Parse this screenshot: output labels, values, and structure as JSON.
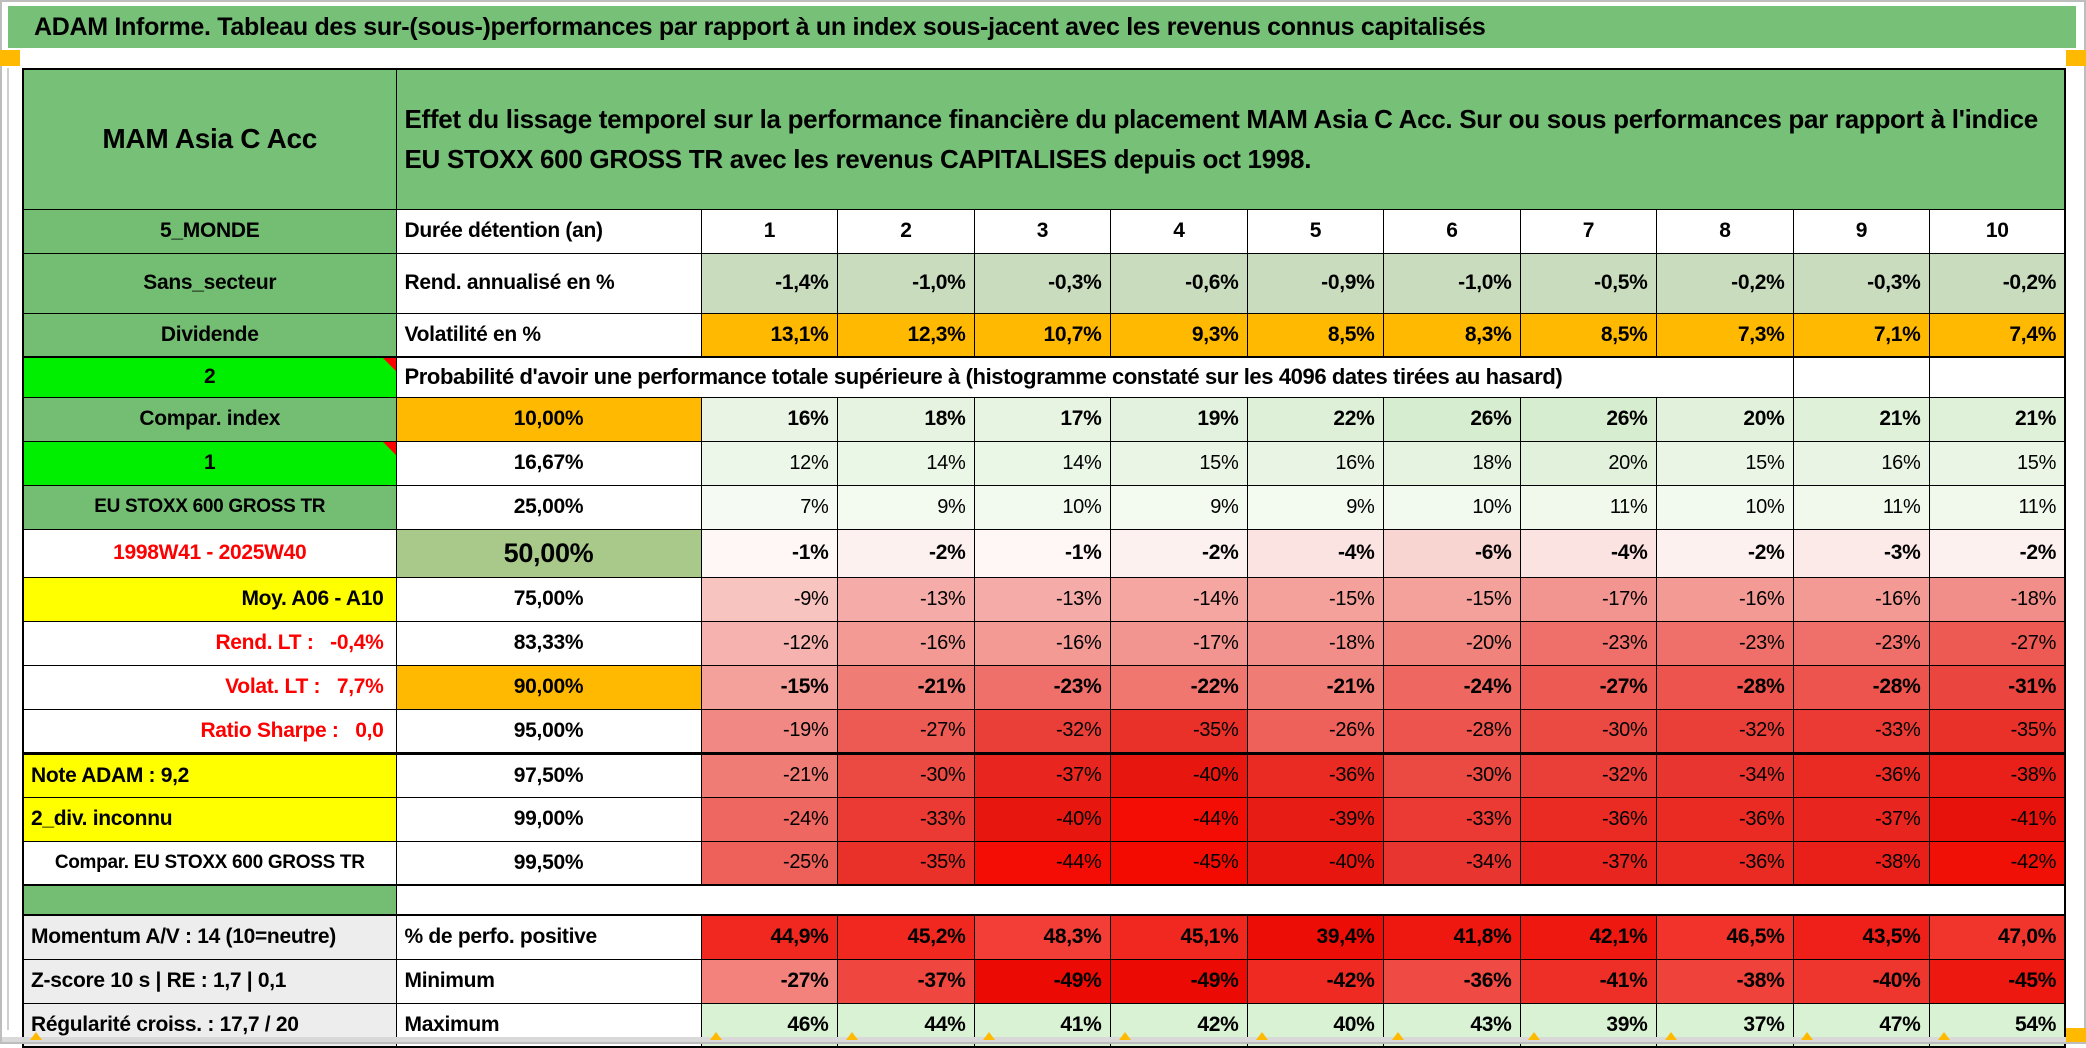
{
  "title": "ADAM Informe. Tableau des sur-(sous-)performances par rapport à un index sous-jacent avec les revenus connus capitalisés",
  "colors": {
    "header_green": "#76C077",
    "label_green": "#74BE73",
    "bright_green": "#00EE00",
    "orange": "#FFB900",
    "yellow": "#FFFF00",
    "sage_green": "#A9C98B",
    "light_green": "#C9DDBE",
    "pale_green_max": "#D8F2D3",
    "gray_label": "#EDEDED",
    "red_text": "#FF0000",
    "strong_red": "#F02820"
  },
  "table": {
    "header": {
      "fund": "MAM Asia C Acc",
      "description": "Effet du lissage temporel sur la performance financière du placement MAM Asia C Acc. Sur ou sous performances par rapport à l'indice EU STOXX 600 GROSS TR avec les revenus CAPITALISES depuis oct 1998."
    },
    "rows": [
      {
        "name": "row-duree",
        "kind": "head",
        "label": "5_MONDE",
        "label_bg": "#74BE73",
        "col2": {
          "text": "Durée détention (an)",
          "align": "left"
        },
        "values": [
          "1",
          "2",
          "3",
          "4",
          "5",
          "6",
          "7",
          "8",
          "9",
          "10"
        ],
        "bg": [
          "#FFFFFF",
          "#FFFFFF",
          "#FFFFFF",
          "#FFFFFF",
          "#FFFFFF",
          "#FFFFFF",
          "#FFFFFF",
          "#FFFFFF",
          "#FFFFFF",
          "#FFFFFF"
        ],
        "bold": true
      },
      {
        "name": "row-rendement",
        "kind": "rend",
        "label": "Sans_secteur",
        "label_bg": "#74BE73",
        "col2": {
          "text": "Rend. annualisé en %",
          "align": "left"
        },
        "values": [
          "-1,4%",
          "-1,0%",
          "-0,3%",
          "-0,6%",
          "-0,9%",
          "-1,0%",
          "-0,5%",
          "-0,2%",
          "-0,3%",
          "-0,2%"
        ],
        "bg": [
          "#C9DDBE",
          "#C9DDBE",
          "#C9DDBE",
          "#C9DDBE",
          "#C9DDBE",
          "#C9DDBE",
          "#C9DDBE",
          "#C9DDBE",
          "#C9DDBE",
          "#C9DDBE"
        ],
        "bold": true
      },
      {
        "name": "row-volatilite",
        "kind": "volat",
        "label": "Dividende",
        "label_bg": "#74BE73",
        "col2": {
          "text": "Volatilité en %",
          "align": "left"
        },
        "values": [
          "13,1%",
          "12,3%",
          "10,7%",
          "9,3%",
          "8,5%",
          "8,3%",
          "8,5%",
          "7,3%",
          "7,1%",
          "7,4%"
        ],
        "bg": [
          "#FFB900",
          "#FFB900",
          "#FFB900",
          "#FFB900",
          "#FFB900",
          "#FFB900",
          "#FFB900",
          "#FFB900",
          "#FFB900",
          "#FFB900"
        ],
        "bold": true
      },
      {
        "name": "row-proba-titre",
        "kind": "proba",
        "label": "2",
        "label_bg": "#00EE00",
        "note": true,
        "span": "Probabilité d'avoir une performance totale supérieure à (histogramme constaté sur les 4096 dates tirées au hasard)"
      },
      {
        "name": "row-p10",
        "kind": "p10",
        "label": "Compar. index",
        "label_bg": "#74BE73",
        "col2": {
          "text": "10,00%",
          "bg": "#FFB900"
        },
        "values": [
          "16%",
          "18%",
          "17%",
          "19%",
          "22%",
          "26%",
          "26%",
          "20%",
          "21%",
          "21%"
        ],
        "bg": [
          "#E9F4E4",
          "#E5F3E0",
          "#E7F4E2",
          "#E3F2DE",
          "#DEF0D8",
          "#D7EDD0",
          "#D7EDD0",
          "#E1F1DC",
          "#E0F1DA",
          "#E0F1DA"
        ],
        "bold": true
      },
      {
        "name": "row-p1667",
        "kind": "p1667",
        "label": "1",
        "label_bg": "#00EE00",
        "note": true,
        "col2": {
          "text": "16,67%"
        },
        "values": [
          "12%",
          "14%",
          "14%",
          "15%",
          "16%",
          "18%",
          "20%",
          "15%",
          "16%",
          "15%"
        ],
        "bg": [
          "#EDF7E9",
          "#EAF6E6",
          "#EAF6E6",
          "#EAF5E5",
          "#E9F4E4",
          "#E5F3E0",
          "#E1F1DC",
          "#EAF5E5",
          "#E9F4E4",
          "#EAF5E5"
        ],
        "bold": false
      },
      {
        "name": "row-p25",
        "kind": "p25",
        "label": "EU STOXX 600 GROSS TR",
        "label_bg": "#74BE73",
        "small": true,
        "col2": {
          "text": "25,00%"
        },
        "values": [
          "7%",
          "9%",
          "10%",
          "9%",
          "9%",
          "10%",
          "11%",
          "10%",
          "11%",
          "11%"
        ],
        "bg": [
          "#F5FBF2",
          "#F3FAF0",
          "#F2F9EE",
          "#F3FAF0",
          "#F3FAF0",
          "#F2F9EE",
          "#F1F9ED",
          "#F2F9EE",
          "#F1F9ED",
          "#F1F9ED"
        ],
        "bold": false
      },
      {
        "name": "row-p50",
        "kind": "p50",
        "label": "1998W41 - 2025W40",
        "label_bg": "#FFFFFF",
        "label_fg": "#FF0000",
        "col2": {
          "text": "50,00%",
          "bg": "#A9C98B",
          "big": true
        },
        "values": [
          "-1%",
          "-2%",
          "-1%",
          "-2%",
          "-4%",
          "-6%",
          "-4%",
          "-2%",
          "-3%",
          "-2%"
        ],
        "bg": [
          "#FEF7F6",
          "#FDF1F0",
          "#FEF7F6",
          "#FDF1F0",
          "#FBE3E1",
          "#F9D5D2",
          "#FBE3E1",
          "#FDF1F0",
          "#FCEAE8",
          "#FDF1F0"
        ],
        "bold": true
      },
      {
        "name": "row-p75",
        "kind": "p75",
        "label": "Moy. A06 - A10",
        "label_bg": "#FFFF00",
        "label_align": "right",
        "col2": {
          "text": "75,00%"
        },
        "values": [
          "-9%",
          "-13%",
          "-13%",
          "-14%",
          "-15%",
          "-15%",
          "-17%",
          "-16%",
          "-16%",
          "-18%"
        ],
        "bg": [
          "#F8C4C0",
          "#F5ACA8",
          "#F5ACA8",
          "#F5A6A1",
          "#F4A09B",
          "#F4A09B",
          "#F29490",
          "#F39A95",
          "#F39A95",
          "#F28E89"
        ],
        "bold": false
      },
      {
        "name": "row-p8333",
        "kind": "p8333",
        "label": "Rend. LT :   -0,4%",
        "label_bg": "#FFFFFF",
        "label_fg": "#FF0000",
        "label_align": "right",
        "col2": {
          "text": "83,33%"
        },
        "values": [
          "-12%",
          "-16%",
          "-16%",
          "-17%",
          "-18%",
          "-20%",
          "-23%",
          "-23%",
          "-23%",
          "-27%"
        ],
        "bg": [
          "#F6B2AE",
          "#F39A95",
          "#F39A95",
          "#F29490",
          "#F28E89",
          "#F1837D",
          "#EF706A",
          "#EF706A",
          "#EF706A",
          "#ED5A53"
        ],
        "bold": false
      },
      {
        "name": "row-p90",
        "kind": "p90",
        "label": "Volat. LT :   7,7%",
        "label_bg": "#FFFFFF",
        "label_fg": "#FF0000",
        "label_align": "right",
        "col2": {
          "text": "90,00%",
          "bg": "#FFB900"
        },
        "values": [
          "-15%",
          "-21%",
          "-23%",
          "-22%",
          "-21%",
          "-24%",
          "-27%",
          "-28%",
          "-28%",
          "-31%"
        ],
        "bg": [
          "#F4A09B",
          "#F07C76",
          "#EF706A",
          "#F07670",
          "#F07C76",
          "#EE6760",
          "#ED5A53",
          "#EC544D",
          "#EC544D",
          "#EA453E"
        ],
        "bold": true
      },
      {
        "name": "row-p95",
        "kind": "p95",
        "label": "Ratio Sharpe :   0,0",
        "label_bg": "#FFFFFF",
        "label_fg": "#FF0000",
        "label_align": "right",
        "col2": {
          "text": "95,00%"
        },
        "values": [
          "-19%",
          "-27%",
          "-32%",
          "-35%",
          "-26%",
          "-28%",
          "-30%",
          "-32%",
          "-33%",
          "-35%"
        ],
        "bg": [
          "#F18883",
          "#ED5A53",
          "#EA3F38",
          "#E93029",
          "#EE615A",
          "#EC544D",
          "#EB4A43",
          "#EA3F38",
          "#EA3A33",
          "#E93029"
        ],
        "bold": false
      },
      {
        "name": "row-p975",
        "kind": "n975",
        "label": "Note ADAM : 9,2",
        "label_bg": "#FFFF00",
        "label_align": "left",
        "col2": {
          "text": "97,50%"
        },
        "values": [
          "-21%",
          "-30%",
          "-37%",
          "-40%",
          "-36%",
          "-30%",
          "-32%",
          "-34%",
          "-36%",
          "-38%"
        ],
        "bg": [
          "#F07C76",
          "#EB4A43",
          "#E8251E",
          "#E71710",
          "#E92B24",
          "#EB4A43",
          "#EA3F38",
          "#E93530",
          "#E92B24",
          "#E82019"
        ],
        "bold": false
      },
      {
        "name": "row-p99",
        "kind": "p99",
        "label": "2_div. inconnu",
        "label_bg": "#FFFF00",
        "label_align": "left",
        "col2": {
          "text": "99,00%"
        },
        "values": [
          "-24%",
          "-33%",
          "-40%",
          "-44%",
          "-39%",
          "-33%",
          "-36%",
          "-36%",
          "-37%",
          "-41%"
        ],
        "bg": [
          "#EE6760",
          "#EA3A33",
          "#E71710",
          "#F30D04",
          "#E71C15",
          "#EA3A33",
          "#E92B24",
          "#E92B24",
          "#E8251E",
          "#E7120B"
        ],
        "bold": false
      },
      {
        "name": "row-p995",
        "kind": "p995",
        "label": "Compar. EU STOXX 600 GROSS TR",
        "label_bg": "#FFFFFF",
        "small": true,
        "col2": {
          "text": "99,50%"
        },
        "values": [
          "-25%",
          "-35%",
          "-44%",
          "-45%",
          "-40%",
          "-34%",
          "-37%",
          "-36%",
          "-38%",
          "-42%"
        ],
        "bg": [
          "#EE615A",
          "#E93029",
          "#F30D04",
          "#F30B02",
          "#E71710",
          "#E93530",
          "#E8251E",
          "#E92B24",
          "#E82019",
          "#F01006"
        ],
        "bold": false
      },
      {
        "name": "row-separator",
        "kind": "sep",
        "label": "",
        "label_bg": "#74BE73"
      },
      {
        "name": "row-perfo-positive",
        "kind": "perfo",
        "label": "Momentum A/V : 14 (10=neutre)",
        "label_bg": "#EDEDED",
        "label_align": "left",
        "col2": {
          "text": "% de perfo. positive",
          "align": "left"
        },
        "values": [
          "44,9%",
          "45,2%",
          "48,3%",
          "45,1%",
          "39,4%",
          "41,8%",
          "42,1%",
          "46,5%",
          "43,5%",
          "47,0%"
        ],
        "bg": [
          "#F02820",
          "#F02820",
          "#F23E36",
          "#F02820",
          "#ED0D07",
          "#EE1811",
          "#EE1811",
          "#F1332B",
          "#EF201A",
          "#F1352D"
        ],
        "bold": true
      },
      {
        "name": "row-minimum",
        "kind": "mini",
        "label": "Z-score 10 s | RE : 1,7 | 0,1",
        "label_bg": "#EDEDED",
        "label_align": "left",
        "col2": {
          "text": "Minimum",
          "align": "left"
        },
        "values": [
          "-27%",
          "-37%",
          "-49%",
          "-49%",
          "-42%",
          "-36%",
          "-41%",
          "-38%",
          "-40%",
          "-45%"
        ],
        "bg": [
          "#F4827C",
          "#EF463F",
          "#EC0A04",
          "#EC0A04",
          "#EE2A23",
          "#EF4A43",
          "#EE2F28",
          "#EF423B",
          "#EE352E",
          "#ED1810"
        ],
        "bold": true
      },
      {
        "name": "row-maximum",
        "kind": "maxi",
        "label": "Régularité croiss. : 17,7 / 20",
        "label_bg": "#EDEDED",
        "label_align": "left",
        "col2": {
          "text": "Maximum",
          "align": "left"
        },
        "values": [
          "46%",
          "44%",
          "41%",
          "42%",
          "40%",
          "43%",
          "39%",
          "37%",
          "47%",
          "54%"
        ],
        "bg": [
          "#D8F2D3",
          "#D8F2D3",
          "#D8F2D3",
          "#D8F2D3",
          "#D8F2D3",
          "#D8F2D3",
          "#D8F2D3",
          "#D8F2D3",
          "#D8F2D3",
          "#D8F2D3"
        ],
        "bold": true
      }
    ]
  }
}
